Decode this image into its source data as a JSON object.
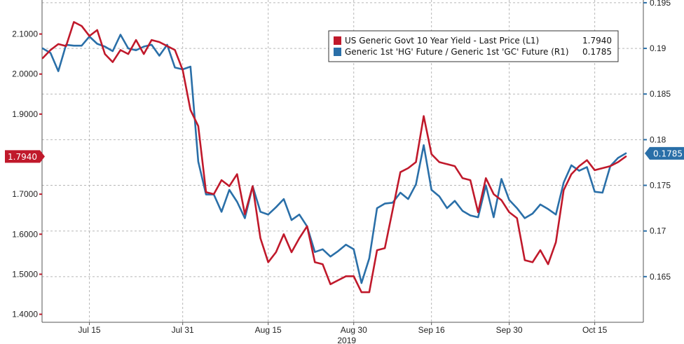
{
  "colors": {
    "left_series": "#c0192b",
    "right_series": "#2a6fa8",
    "grid": "#b7b7b7",
    "axis": "#555555"
  },
  "chart_data": {
    "type": "line",
    "x": [
      "Jul 5",
      "Jul 8",
      "Jul 9",
      "Jul 10",
      "Jul 11",
      "Jul 12",
      "Jul 15",
      "Jul 16",
      "Jul 17",
      "Jul 18",
      "Jul 19",
      "Jul 22",
      "Jul 23",
      "Jul 24",
      "Jul 25",
      "Jul 26",
      "Jul 29",
      "Jul 30",
      "Jul 31",
      "Aug 1",
      "Aug 2",
      "Aug 5",
      "Aug 6",
      "Aug 7",
      "Aug 8",
      "Aug 9",
      "Aug 12",
      "Aug 13",
      "Aug 14",
      "Aug 15",
      "Aug 16",
      "Aug 19",
      "Aug 20",
      "Aug 21",
      "Aug 22",
      "Aug 23",
      "Aug 26",
      "Aug 27",
      "Aug 28",
      "Aug 29",
      "Aug 30",
      "Sep 3",
      "Sep 4",
      "Sep 5",
      "Sep 6",
      "Sep 9",
      "Sep 10",
      "Sep 11",
      "Sep 12",
      "Sep 13",
      "Sep 16",
      "Sep 17",
      "Sep 18",
      "Sep 19",
      "Sep 20",
      "Sep 23",
      "Sep 24",
      "Sep 25",
      "Sep 26",
      "Sep 27",
      "Sep 30",
      "Oct 1",
      "Oct 2",
      "Oct 3",
      "Oct 4",
      "Oct 7",
      "Oct 8",
      "Oct 9",
      "Oct 10",
      "Oct 11",
      "Oct 14",
      "Oct 15",
      "Oct 16",
      "Oct 17",
      "Oct 18",
      "Oct 21"
    ],
    "x_ticks": [
      {
        "label": "Jul 15",
        "at": "Jul 15"
      },
      {
        "label": "Jul 31",
        "at": "Jul 31"
      },
      {
        "label": "Aug 15",
        "at": "Aug 15"
      },
      {
        "label": "Aug 30",
        "at": "Aug 30"
      },
      {
        "label": "Sep 16",
        "at": "Sep 16"
      },
      {
        "label": "Sep 30",
        "at": "Sep 30"
      },
      {
        "label": "Oct 15",
        "at": "Oct 15"
      }
    ],
    "x_year_label": "2019",
    "y_left": {
      "ylim": [
        1.38,
        2.185
      ],
      "ticks": [
        1.4,
        1.5,
        1.6,
        1.7,
        1.8,
        1.9,
        2.0,
        2.1
      ],
      "tick_labels": [
        "1.4000",
        "1.5000",
        "1.6000",
        "1.7000",
        "1.8000",
        "1.9000",
        "2.0000",
        "2.1000"
      ]
    },
    "y_right": {
      "ylim": [
        0.16,
        0.1953
      ],
      "ticks": [
        0.165,
        0.17,
        0.175,
        0.18,
        0.185,
        0.19,
        0.195
      ],
      "tick_labels": [
        "0.165",
        "0.17",
        "0.175",
        "0.18",
        "0.185",
        "0.19",
        "0.195"
      ]
    },
    "series": [
      {
        "name": "US Generic Govt 10 Year Yield - Last Price (L1)",
        "axis": "left",
        "last_label": "1.7940",
        "color": "#c0192b",
        "values": [
          2.04,
          2.06,
          2.075,
          2.07,
          2.13,
          2.12,
          2.095,
          2.11,
          2.05,
          2.03,
          2.06,
          2.05,
          2.085,
          2.05,
          2.085,
          2.08,
          2.07,
          2.06,
          2.01,
          1.91,
          1.87,
          1.705,
          1.7,
          1.735,
          1.72,
          1.75,
          1.65,
          1.72,
          1.59,
          1.53,
          1.555,
          1.6,
          1.555,
          1.59,
          1.62,
          1.53,
          1.525,
          1.475,
          1.485,
          1.495,
          1.495,
          1.455,
          1.455,
          1.56,
          1.565,
          1.66,
          1.755,
          1.765,
          1.78,
          1.895,
          1.8,
          1.78,
          1.775,
          1.77,
          1.74,
          1.735,
          1.655,
          1.74,
          1.7,
          1.685,
          1.655,
          1.64,
          1.535,
          1.53,
          1.56,
          1.525,
          1.58,
          1.71,
          1.75,
          1.77,
          1.785,
          1.76,
          1.765,
          1.77,
          1.78,
          1.794
        ]
      },
      {
        "name": "Generic 1st 'HG' Future / Generic 1st 'GC' Future (R1)",
        "axis": "right",
        "last_label": "0.1785",
        "color": "#2a6fa8",
        "values": [
          0.19,
          0.1895,
          0.1875,
          0.1904,
          0.1903,
          0.1903,
          0.1913,
          0.1905,
          0.1902,
          0.1897,
          0.1915,
          0.19,
          0.1898,
          0.1902,
          0.1904,
          0.1892,
          0.1904,
          0.1879,
          0.1877,
          0.188,
          0.1776,
          0.174,
          0.174,
          0.1721,
          0.1745,
          0.1732,
          0.1714,
          0.1749,
          0.1721,
          0.1718,
          0.1726,
          0.1735,
          0.1712,
          0.1718,
          0.1705,
          0.1677,
          0.168,
          0.1672,
          0.1678,
          0.1685,
          0.168,
          0.1643,
          0.167,
          0.1725,
          0.173,
          0.1731,
          0.1742,
          0.1735,
          0.1751,
          0.1794,
          0.1745,
          0.1738,
          0.1725,
          0.1733,
          0.1722,
          0.1717,
          0.1715,
          0.175,
          0.1715,
          0.1757,
          0.1734,
          0.1725,
          0.1714,
          0.1719,
          0.1729,
          0.1724,
          0.1718,
          0.1753,
          0.1772,
          0.1766,
          0.177,
          0.1743,
          0.1742,
          0.1771,
          0.178,
          0.1785
        ]
      }
    ],
    "legend": [
      {
        "label": "US Generic Govt 10 Year Yield - Last Price (L1)",
        "value": "1.7940",
        "color": "#c0192b"
      },
      {
        "label": "Generic 1st 'HG' Future / Generic 1st 'GC' Future (R1)",
        "value": "0.1785",
        "color": "#2a6fa8"
      }
    ],
    "legend_position": "top-right",
    "grid": true
  }
}
